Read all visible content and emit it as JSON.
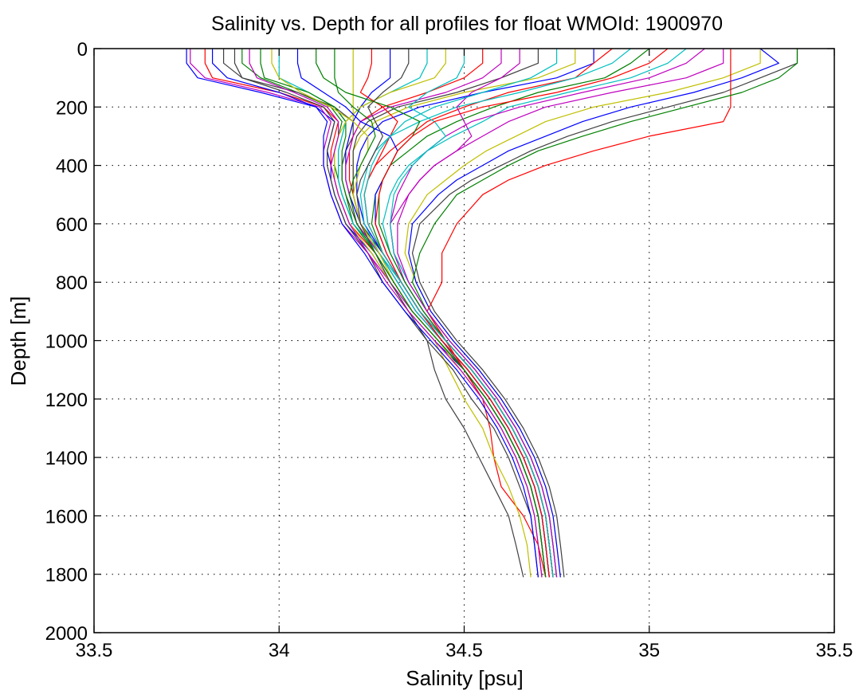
{
  "chart_data": {
    "type": "line",
    "title": "Salinity vs. Depth for all profiles for float WMOId: 1900970",
    "xlabel": "Salinity [psu]",
    "ylabel": "Depth [m]",
    "xlim": [
      33.5,
      35.5
    ],
    "ylim": [
      0,
      2000
    ],
    "y_reversed": true,
    "grid": true,
    "grid_style": "dotted",
    "xticks": [
      "33.5",
      "34",
      "34.5",
      "35",
      "35.5"
    ],
    "yticks": [
      "0",
      "200",
      "400",
      "600",
      "800",
      "1000",
      "1200",
      "1400",
      "1600",
      "1800",
      "2000"
    ],
    "depths": [
      0,
      50,
      100,
      150,
      200,
      250,
      300,
      350,
      400,
      450,
      500,
      600,
      700,
      800,
      900,
      1000,
      1100,
      1200,
      1300,
      1400,
      1500,
      1600,
      1700,
      1810
    ],
    "colors": [
      "#0000ff",
      "#ff0000",
      "#008000",
      "#00bfbf",
      "#bf00bf",
      "#bfbf00",
      "#404040"
    ],
    "series": [
      {
        "values": [
          33.75,
          33.75,
          33.78,
          33.95,
          34.1,
          34.15,
          34.14,
          34.13,
          34.14,
          34.14,
          34.15,
          34.18,
          34.25,
          34.3,
          34.35,
          34.42,
          34.5,
          34.55,
          34.6,
          34.64,
          34.67,
          34.69,
          34.7,
          34.71
        ]
      },
      {
        "values": [
          33.8,
          33.8,
          33.82,
          34.0,
          34.12,
          34.16,
          34.15,
          34.14,
          34.14,
          34.15,
          34.16,
          34.19,
          34.26,
          34.31,
          34.36,
          34.43,
          34.5,
          34.56,
          34.61,
          34.65,
          34.68,
          34.7,
          34.71,
          34.72
        ]
      },
      {
        "values": [
          33.9,
          33.9,
          33.95,
          34.05,
          34.14,
          34.17,
          34.16,
          34.15,
          34.15,
          34.16,
          34.17,
          34.2,
          34.27,
          34.32,
          34.37,
          34.44,
          34.51,
          34.57,
          34.62,
          34.66,
          34.69,
          34.71,
          34.72,
          34.73
        ]
      },
      {
        "values": [
          34.0,
          34.0,
          34.0,
          34.08,
          34.15,
          34.18,
          34.17,
          34.16,
          34.16,
          34.16,
          34.17,
          34.2,
          34.27,
          34.33,
          34.38,
          34.45,
          34.52,
          34.58,
          34.63,
          34.67,
          34.7,
          34.72,
          34.73,
          34.74
        ]
      },
      {
        "values": [
          33.76,
          33.76,
          33.8,
          33.97,
          34.11,
          34.14,
          34.13,
          34.12,
          34.12,
          34.13,
          34.14,
          34.17,
          34.24,
          34.3,
          34.36,
          34.43,
          34.5,
          34.56,
          34.61,
          34.65,
          34.68,
          34.7,
          34.71,
          34.72
        ]
      },
      {
        "values": [
          34.2,
          34.2,
          34.2,
          34.2,
          34.2,
          34.2,
          34.19,
          34.18,
          34.18,
          34.18,
          34.19,
          34.22,
          34.28,
          34.33,
          34.38,
          34.44,
          34.51,
          34.57,
          34.62,
          34.66,
          34.69,
          34.71,
          34.72,
          34.73
        ]
      },
      {
        "values": [
          33.85,
          33.85,
          33.9,
          34.05,
          34.15,
          34.2,
          34.2,
          34.18,
          34.17,
          34.17,
          34.18,
          34.21,
          34.27,
          34.32,
          34.37,
          34.44,
          34.5,
          34.56,
          34.61,
          34.65,
          34.68,
          34.7,
          34.71,
          34.72
        ]
      },
      {
        "values": [
          34.3,
          34.3,
          34.3,
          34.25,
          34.22,
          34.2,
          34.19,
          34.18,
          34.18,
          34.18,
          34.19,
          34.22,
          34.28,
          34.33,
          34.38,
          34.45,
          34.52,
          34.58,
          34.63,
          34.67,
          34.7,
          34.72,
          34.73,
          34.74
        ]
      },
      {
        "values": [
          34.55,
          34.55,
          34.5,
          34.4,
          34.28,
          34.22,
          34.2,
          34.19,
          34.19,
          34.19,
          34.2,
          34.22,
          34.28,
          34.33,
          34.38,
          34.45,
          34.52,
          34.58,
          34.63,
          34.67,
          34.7,
          34.72,
          34.73,
          34.74
        ]
      },
      {
        "values": [
          33.95,
          33.95,
          33.96,
          34.08,
          34.15,
          34.18,
          34.18,
          34.17,
          34.17,
          34.17,
          34.18,
          34.2,
          34.26,
          34.31,
          34.36,
          34.43,
          34.5,
          34.56,
          34.61,
          34.65,
          34.68,
          34.7,
          34.71,
          34.72
        ]
      },
      {
        "values": [
          34.4,
          34.4,
          34.38,
          34.3,
          34.22,
          34.18,
          34.17,
          34.16,
          34.16,
          34.16,
          34.17,
          34.2,
          34.27,
          34.32,
          34.37,
          34.44,
          34.51,
          34.57,
          34.62,
          34.66,
          34.69,
          34.71,
          34.72,
          34.73
        ]
      },
      {
        "values": [
          34.6,
          34.6,
          34.55,
          34.45,
          34.3,
          34.22,
          34.2,
          34.19,
          34.18,
          34.18,
          34.19,
          34.21,
          34.27,
          34.32,
          34.37,
          34.44,
          34.51,
          34.57,
          34.62,
          34.66,
          34.69,
          34.71,
          34.72,
          34.73
        ]
      },
      {
        "values": [
          34.8,
          34.8,
          34.7,
          34.5,
          34.35,
          34.26,
          34.22,
          34.2,
          34.2,
          34.2,
          34.2,
          34.22,
          34.28,
          34.33,
          34.38,
          34.45,
          34.52,
          34.58,
          34.63,
          34.67,
          34.7,
          34.72,
          34.73,
          34.74
        ]
      },
      {
        "values": [
          34.7,
          34.7,
          34.6,
          34.48,
          34.32,
          34.24,
          34.21,
          34.2,
          34.2,
          34.2,
          34.2,
          34.22,
          34.28,
          34.33,
          34.38,
          34.45,
          34.52,
          34.58,
          34.63,
          34.67,
          34.7,
          34.72,
          34.73,
          34.74
        ]
      },
      {
        "values": [
          34.85,
          34.85,
          34.75,
          34.55,
          34.38,
          34.28,
          34.24,
          34.22,
          34.21,
          34.21,
          34.21,
          34.23,
          34.28,
          34.33,
          34.38,
          34.45,
          34.52,
          34.58,
          34.63,
          34.67,
          34.7,
          34.72,
          34.73,
          34.74
        ]
      },
      {
        "values": [
          34.9,
          34.85,
          34.8,
          34.62,
          34.5,
          34.4,
          34.35,
          34.3,
          34.26,
          34.24,
          34.23,
          34.24,
          34.28,
          34.33,
          34.38,
          34.45,
          34.52,
          34.58,
          34.63,
          34.67,
          34.7,
          34.72,
          34.73,
          34.74
        ]
      },
      {
        "values": [
          35.0,
          34.95,
          34.88,
          34.7,
          34.58,
          34.48,
          34.4,
          34.35,
          34.3,
          34.28,
          34.26,
          34.25,
          34.28,
          34.33,
          34.38,
          34.45,
          34.52,
          34.58,
          34.63,
          34.67,
          34.7,
          34.72,
          34.73,
          34.74
        ]
      },
      {
        "values": [
          35.1,
          35.05,
          34.95,
          34.78,
          34.62,
          34.55,
          34.47,
          34.4,
          34.35,
          34.32,
          34.3,
          34.28,
          34.3,
          34.34,
          34.39,
          34.45,
          34.52,
          34.58,
          34.63,
          34.67,
          34.7,
          34.72,
          34.73,
          34.74
        ]
      },
      {
        "values": [
          35.2,
          35.2,
          35.1,
          34.9,
          34.72,
          34.62,
          34.55,
          34.48,
          34.42,
          34.38,
          34.35,
          34.3,
          34.31,
          34.35,
          34.4,
          34.46,
          34.53,
          34.59,
          34.64,
          34.68,
          34.71,
          34.73,
          34.74,
          34.75
        ]
      },
      {
        "values": [
          35.3,
          35.3,
          35.2,
          35.05,
          34.85,
          34.72,
          34.64,
          34.56,
          34.5,
          34.45,
          34.4,
          34.35,
          34.34,
          34.37,
          34.41,
          34.47,
          34.54,
          34.6,
          34.65,
          34.69,
          34.72,
          34.74,
          34.75,
          34.76
        ]
      },
      {
        "values": [
          35.4,
          35.4,
          35.3,
          35.2,
          35.05,
          34.9,
          34.78,
          34.68,
          34.6,
          34.52,
          34.46,
          34.38,
          34.36,
          34.38,
          34.42,
          34.48,
          34.55,
          34.61,
          34.66,
          34.7,
          34.73,
          34.75,
          34.76,
          34.77
        ]
      },
      {
        "values": [
          35.3,
          35.35,
          35.25,
          35.12,
          34.95,
          34.82,
          34.72,
          34.62,
          34.55,
          34.48,
          34.43,
          34.36,
          34.35,
          34.37,
          34.41,
          34.47,
          34.54,
          34.6,
          34.65,
          34.69,
          34.72,
          34.74,
          34.75,
          34.76
        ]
      },
      {
        "values": [
          35.22,
          35.22,
          35.22,
          35.22,
          35.22,
          35.2,
          35.0,
          34.85,
          34.72,
          34.62,
          34.55,
          34.48,
          34.44,
          34.44,
          34.4,
          34.45,
          34.5,
          34.55,
          34.57,
          34.58,
          34.6,
          34.66,
          34.7,
          34.72
        ]
      },
      {
        "values": [
          35.4,
          35.4,
          35.35,
          35.25,
          35.1,
          34.95,
          34.82,
          34.7,
          34.62,
          34.55,
          34.48,
          34.42,
          34.38,
          34.36,
          34.4,
          34.46,
          34.53,
          34.59,
          34.64,
          34.68,
          34.71,
          34.73,
          34.74,
          34.75
        ]
      },
      {
        "values": [
          34.95,
          34.9,
          34.8,
          34.65,
          34.48,
          34.38,
          34.3,
          34.26,
          34.24,
          34.23,
          34.22,
          34.23,
          34.27,
          34.32,
          34.37,
          34.44,
          34.51,
          34.57,
          34.62,
          34.66,
          34.69,
          34.71,
          34.72,
          34.73
        ]
      },
      {
        "values": [
          35.15,
          35.1,
          35.0,
          34.82,
          34.65,
          34.52,
          34.45,
          34.4,
          34.36,
          34.34,
          34.32,
          34.3,
          34.31,
          34.34,
          34.39,
          34.45,
          34.52,
          34.58,
          34.63,
          34.67,
          34.7,
          34.72,
          34.73,
          34.74
        ]
      },
      {
        "values": [
          34.45,
          34.45,
          34.42,
          34.3,
          34.22,
          34.18,
          34.16,
          34.15,
          34.15,
          34.15,
          34.16,
          34.19,
          34.25,
          34.3,
          34.35,
          34.42,
          34.46,
          34.5,
          34.55,
          34.58,
          34.62,
          34.65,
          34.67,
          34.68
        ]
      },
      {
        "values": [
          33.88,
          33.88,
          33.9,
          34.02,
          34.12,
          34.15,
          34.14,
          34.13,
          34.13,
          34.14,
          34.15,
          34.18,
          34.24,
          34.28,
          34.34,
          34.4,
          34.42,
          34.45,
          34.5,
          34.54,
          34.58,
          34.62,
          34.64,
          34.66
        ]
      },
      {
        "values": [
          34.05,
          34.05,
          34.06,
          34.12,
          34.18,
          34.22,
          34.3,
          34.32,
          34.3,
          34.28,
          34.26,
          34.26,
          34.29,
          34.33,
          34.38,
          34.44,
          34.51,
          34.57,
          34.62,
          34.66,
          34.69,
          34.71,
          34.72,
          34.73
        ]
      },
      {
        "values": [
          34.25,
          34.25,
          34.24,
          34.22,
          34.28,
          34.32,
          34.3,
          34.28,
          34.26,
          34.24,
          34.23,
          34.24,
          34.28,
          34.33,
          34.38,
          34.44,
          34.51,
          34.57,
          34.62,
          34.66,
          34.69,
          34.71,
          34.72,
          34.73
        ]
      },
      {
        "values": [
          34.1,
          34.1,
          34.12,
          34.18,
          34.3,
          34.38,
          34.36,
          34.32,
          34.3,
          34.28,
          34.27,
          34.27,
          34.3,
          34.34,
          34.39,
          34.45,
          34.52,
          34.58,
          34.63,
          34.67,
          34.7,
          34.72,
          34.73,
          34.74
        ]
      },
      {
        "values": [
          34.5,
          34.5,
          34.48,
          34.4,
          34.35,
          34.42,
          34.45,
          34.4,
          34.36,
          34.33,
          34.31,
          34.3,
          34.31,
          34.35,
          34.4,
          34.46,
          34.53,
          34.59,
          34.64,
          34.68,
          34.71,
          34.73,
          34.74,
          34.75
        ]
      },
      {
        "values": [
          34.65,
          34.65,
          34.6,
          34.52,
          34.48,
          34.5,
          34.52,
          34.48,
          34.42,
          34.38,
          34.35,
          34.32,
          34.32,
          34.35,
          34.4,
          34.46,
          34.53,
          34.59,
          34.64,
          34.68,
          34.71,
          34.73,
          34.74,
          34.75
        ]
      },
      {
        "values": [
          33.98,
          33.98,
          34.0,
          34.06,
          34.14,
          34.2,
          34.24,
          34.24,
          34.22,
          34.21,
          34.2,
          34.22,
          34.27,
          34.31,
          34.36,
          34.43,
          34.49,
          34.55,
          34.6,
          34.64,
          34.67,
          34.69,
          34.7,
          34.71
        ]
      },
      {
        "values": [
          34.35,
          34.35,
          34.33,
          34.28,
          34.24,
          34.26,
          34.28,
          34.26,
          34.24,
          34.22,
          34.21,
          34.22,
          34.26,
          34.3,
          34.35,
          34.4,
          34.47,
          34.52,
          34.58,
          34.62,
          34.65,
          34.68,
          34.69,
          34.7
        ]
      },
      {
        "values": [
          33.82,
          33.82,
          33.86,
          34.0,
          34.1,
          34.13,
          34.12,
          34.12,
          34.12,
          34.13,
          34.14,
          34.17,
          34.23,
          34.28,
          34.34,
          34.41,
          34.48,
          34.54,
          34.59,
          34.63,
          34.66,
          34.68,
          34.69,
          34.7
        ]
      },
      {
        "values": [
          35.05,
          35.0,
          34.9,
          34.75,
          34.55,
          34.42,
          34.36,
          34.32,
          34.3,
          34.28,
          34.27,
          34.26,
          34.29,
          34.33,
          34.38,
          34.45,
          34.52,
          34.58,
          34.63,
          34.67,
          34.7,
          34.72,
          34.73,
          34.74
        ]
      },
      {
        "values": [
          34.15,
          34.15,
          34.15,
          34.16,
          34.2,
          34.25,
          34.26,
          34.24,
          34.22,
          34.2,
          34.19,
          34.21,
          34.26,
          34.31,
          34.36,
          34.43,
          34.5,
          34.56,
          34.61,
          34.65,
          34.68,
          34.7,
          34.71,
          34.72
        ]
      },
      {
        "values": [
          34.75,
          34.75,
          34.68,
          34.55,
          34.42,
          34.34,
          34.3,
          34.27,
          34.25,
          34.24,
          34.23,
          34.24,
          34.28,
          34.33,
          34.38,
          34.45,
          34.52,
          34.58,
          34.63,
          34.67,
          34.7,
          34.72,
          34.73,
          34.74
        ]
      },
      {
        "values": [
          33.92,
          33.92,
          33.94,
          34.04,
          34.13,
          34.16,
          34.16,
          34.15,
          34.14,
          34.15,
          34.16,
          34.19,
          34.24,
          34.29,
          34.35,
          34.42,
          34.49,
          34.55,
          34.6,
          34.64,
          34.67,
          34.69,
          34.7,
          34.71
        ]
      }
    ]
  }
}
